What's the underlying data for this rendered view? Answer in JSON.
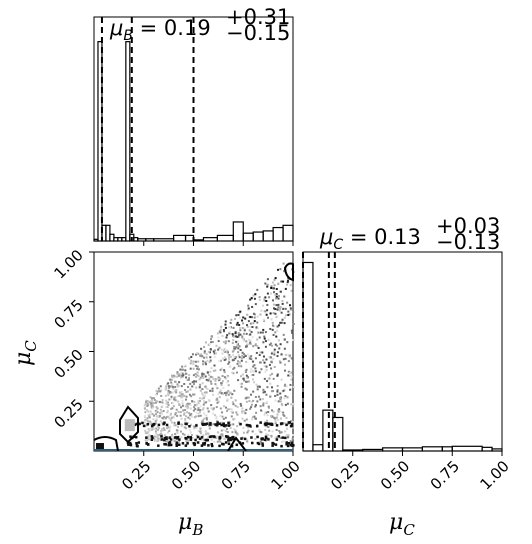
{
  "chart_data": [
    {
      "panel": "hist-mu-B",
      "type": "histogram",
      "title_parts": {
        "symbol": "μ",
        "subscript": "B",
        "equals": " = 0.19",
        "sup": "+0.31",
        "sub": "−0.15"
      },
      "xlim": [
        0.0,
        1.0
      ],
      "bin_edges": [
        0.0,
        0.02,
        0.04,
        0.06,
        0.08,
        0.1,
        0.12,
        0.14,
        0.16,
        0.18,
        0.2,
        0.22,
        0.26,
        0.3,
        0.4,
        0.46,
        0.5,
        0.55,
        0.62,
        0.7,
        0.75,
        0.8,
        0.85,
        0.9,
        0.95,
        1.0
      ],
      "counts": [
        0.15,
        17.8,
        1.4,
        1.4,
        0.6,
        0.3,
        0.3,
        0.3,
        17.8,
        0.6,
        0.3,
        0.2,
        0.2,
        0.2,
        0.5,
        0.5,
        0.1,
        0.3,
        0.5,
        1.7,
        0.7,
        0.8,
        0.9,
        1.2,
        1.4
      ],
      "ylim": [
        0,
        20
      ],
      "quantile_lines": [
        0.04,
        0.19,
        0.5
      ],
      "x_ticks": [
        0.25,
        0.5,
        0.75,
        1.0
      ]
    },
    {
      "panel": "joint-mu-B-mu-C",
      "type": "scatter",
      "xlabel_parts": {
        "symbol": "μ",
        "subscript": "B"
      },
      "ylabel_parts": {
        "symbol": "μ",
        "subscript": "C"
      },
      "xlim": [
        0.0,
        1.0
      ],
      "ylim": [
        0.0,
        1.0
      ],
      "x_tick_labels": [
        "0.25",
        "0.50",
        "0.75",
        "1.00"
      ],
      "y_tick_labels": [
        "0.25",
        "0.50",
        "0.75",
        "1.00"
      ],
      "x_ticks": [
        0.25,
        0.5,
        0.75,
        1.0
      ],
      "y_ticks": [
        0.25,
        0.5,
        0.75,
        1.0
      ],
      "dense_region_1": {
        "x": 0.18,
        "y": 0.13
      },
      "dense_region_2": {
        "x": 0.03,
        "y": 0.02
      }
    },
    {
      "panel": "hist-mu-C",
      "type": "histogram",
      "title_parts": {
        "symbol": "μ",
        "subscript": "C",
        "equals": " = 0.13",
        "sup": "+0.03",
        "sub": "−0.13"
      },
      "xlabel_parts": {
        "symbol": "μ",
        "subscript": "C"
      },
      "xlim": [
        0.0,
        1.0
      ],
      "bin_edges": [
        0.0,
        0.05,
        0.1,
        0.15,
        0.2,
        0.3,
        0.4,
        0.5,
        0.6,
        0.7,
        0.75,
        0.9,
        0.95,
        1.0
      ],
      "counts": [
        18,
        0.6,
        3.9,
        3.2,
        0.1,
        0.15,
        0.3,
        0.3,
        0.4,
        0.4,
        0.45,
        0.35,
        0.2
      ],
      "ylim": [
        0,
        19
      ],
      "quantile_lines": [
        0.0,
        0.13,
        0.16
      ],
      "x_tick_labels": [
        "0.25",
        "0.50",
        "0.75",
        "1.00"
      ],
      "x_ticks": [
        0.25,
        0.5,
        0.75,
        1.0
      ]
    }
  ]
}
